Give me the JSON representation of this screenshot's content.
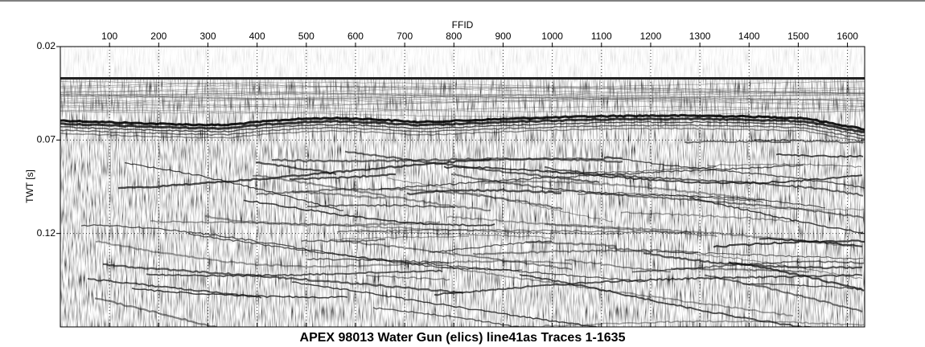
{
  "chart_data": {
    "type": "image",
    "title": "APEX 98013 Water Gun (elics) line41as Traces 1-1635",
    "xlabel": "FFID",
    "ylabel": "TWT [s]",
    "xlim": [
      0,
      1635
    ],
    "xticks": [
      100,
      200,
      300,
      400,
      500,
      600,
      700,
      800,
      900,
      1000,
      1100,
      1200,
      1300,
      1400,
      1500,
      1600
    ],
    "ylim": [
      0.02,
      0.17
    ],
    "yticks": [
      0.02,
      0.07,
      0.12
    ],
    "y_inverted": true,
    "x_axis_position": "top",
    "grid": true
  }
}
